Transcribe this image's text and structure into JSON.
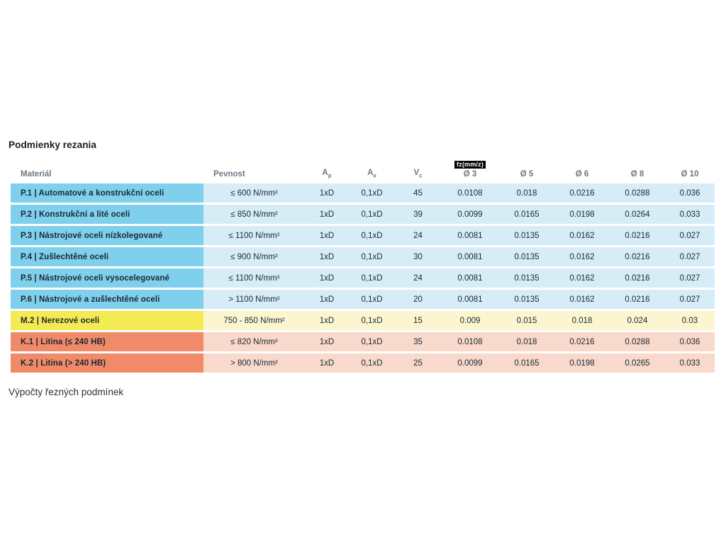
{
  "page": {
    "title": "Podmienky rezania",
    "footer": "Výpočty řezných podmínek"
  },
  "colors": {
    "blue_dark": "#7fd0ec",
    "blue_light": "#d6edf8",
    "yellow_dark": "#f4eb54",
    "yellow_light": "#fbf6d0",
    "orange_dark": "#f18a68",
    "orange_light": "#f8d9cb",
    "badge_bg": "#000000",
    "badge_text": "#ffffff"
  },
  "table": {
    "columns": {
      "material": "Materiál",
      "strength": "Pevnost",
      "ap": {
        "base": "A",
        "sub": "p"
      },
      "ae": {
        "base": "A",
        "sub": "e"
      },
      "vc": {
        "base": "V",
        "sub": "c"
      },
      "fz_label": "fz(mm/z)",
      "d3": "Ø 3",
      "d5": "Ø 5",
      "d6": "Ø 6",
      "d8": "Ø 8",
      "d10": "Ø 10"
    },
    "rows": [
      {
        "group": "blue",
        "material": "P.1 | Automatové a konstrukční oceli",
        "strength": "≤ 600 N/mm²",
        "ap": "1xD",
        "ae": "0,1xD",
        "vc": "45",
        "d3": "0.0108",
        "d5": "0.018",
        "d6": "0.0216",
        "d8": "0.0288",
        "d10": "0.036"
      },
      {
        "group": "blue",
        "material": "P.2 | Konstrukční a lité oceli",
        "strength": "≤ 850 N/mm²",
        "ap": "1xD",
        "ae": "0,1xD",
        "vc": "39",
        "d3": "0.0099",
        "d5": "0.0165",
        "d6": "0.0198",
        "d8": "0.0264",
        "d10": "0.033"
      },
      {
        "group": "blue",
        "material": "P.3 | Nástrojové oceli nízkolegované",
        "strength": "≤ 1100 N/mm²",
        "ap": "1xD",
        "ae": "0,1xD",
        "vc": "24",
        "d3": "0.0081",
        "d5": "0.0135",
        "d6": "0.0162",
        "d8": "0.0216",
        "d10": "0.027"
      },
      {
        "group": "blue",
        "material": "P.4 | Zušlechtěné oceli",
        "strength": "≤ 900 N/mm²",
        "ap": "1xD",
        "ae": "0,1xD",
        "vc": "30",
        "d3": "0.0081",
        "d5": "0.0135",
        "d6": "0.0162",
        "d8": "0.0216",
        "d10": "0.027"
      },
      {
        "group": "blue",
        "material": "P.5 | Nástrojové oceli vysocelegované",
        "strength": "≤ 1100 N/mm²",
        "ap": "1xD",
        "ae": "0,1xD",
        "vc": "24",
        "d3": "0.0081",
        "d5": "0.0135",
        "d6": "0.0162",
        "d8": "0.0216",
        "d10": "0.027"
      },
      {
        "group": "blue",
        "material": "P.6 | Nástrojové a zušlechtěné oceli",
        "strength": "> 1100 N/mm²",
        "ap": "1xD",
        "ae": "0,1xD",
        "vc": "20",
        "d3": "0.0081",
        "d5": "0.0135",
        "d6": "0.0162",
        "d8": "0.0216",
        "d10": "0.027"
      },
      {
        "group": "yellow",
        "material": "M.2 | Nerezové oceli",
        "strength": "750 - 850 N/mm²",
        "ap": "1xD",
        "ae": "0,1xD",
        "vc": "15",
        "d3": "0.009",
        "d5": "0.015",
        "d6": "0.018",
        "d8": "0.024",
        "d10": "0.03"
      },
      {
        "group": "orange",
        "material": "K.1 | Litina (≤ 240 HB)",
        "strength": "≤ 820 N/mm²",
        "ap": "1xD",
        "ae": "0,1xD",
        "vc": "35",
        "d3": "0.0108",
        "d5": "0.018",
        "d6": "0.0216",
        "d8": "0.0288",
        "d10": "0.036"
      },
      {
        "group": "orange",
        "material": "K.2 | Litina (> 240 HB)",
        "strength": "> 800 N/mm²",
        "ap": "1xD",
        "ae": "0,1xD",
        "vc": "25",
        "d3": "0.0099",
        "d5": "0.0165",
        "d6": "0.0198",
        "d8": "0.0265",
        "d10": "0.033"
      }
    ]
  }
}
